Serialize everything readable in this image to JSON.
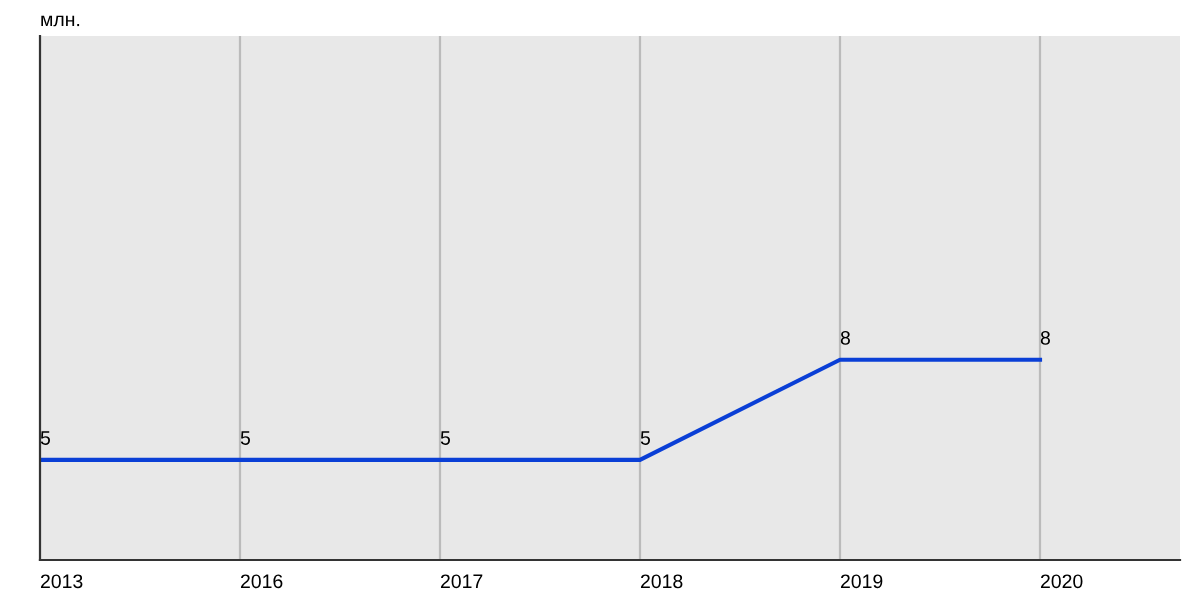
{
  "chart_data": {
    "type": "line",
    "ylabel": "млн.",
    "categories": [
      "2013",
      "2016",
      "2017",
      "2018",
      "2019",
      "2020"
    ],
    "series": [
      {
        "color": "#0a3fd6",
        "values": [
          5,
          5,
          5,
          5,
          8,
          8
        ]
      }
    ],
    "ylim": [
      2,
      17.7
    ],
    "data_labels": true,
    "grid": "x",
    "tick_labels": "x",
    "marker": "none",
    "line_style": "solid",
    "legend": false
  }
}
